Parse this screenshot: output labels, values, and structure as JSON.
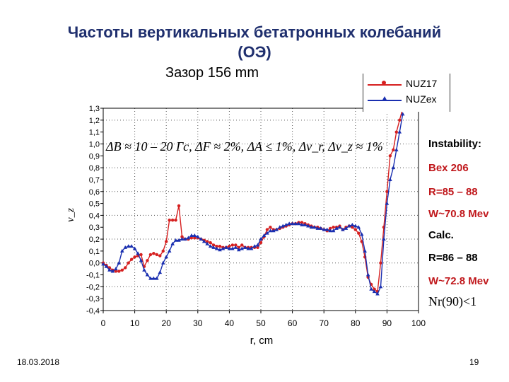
{
  "slide": {
    "title_line1": "Частоты вертикальных бетатронных колебаний",
    "title_line2": "(ОЭ)",
    "subtitle": "Зазор 156 mm",
    "formula": "ΔB ≈ 10 – 20 Гс, ΔF ≈ 2%, ΔA ≤ 1%, Δν_r, Δν_z ≈ 1%",
    "date": "18.03.2018",
    "page_number": "19",
    "side_notes": [
      {
        "text": "Instability:",
        "color": "#000000"
      },
      {
        "text": "Bex 206",
        "color": "#c0181c"
      },
      {
        "text": "R=85 – 88",
        "color": "#c0181c"
      },
      {
        "text": "W~70.8 Mev",
        "color": "#c0181c"
      },
      {
        "text": "Calc.",
        "color": "#000000"
      },
      {
        "text": "R=86 – 88",
        "color": "#000000"
      },
      {
        "text": "W~72.8 Mev",
        "color": "#c0181c"
      },
      {
        "text": "Nr(90)<1",
        "color": "#000000"
      }
    ]
  },
  "chart_data": {
    "type": "line",
    "xlabel": "r, cm",
    "ylabel": "ν_z",
    "xlim": [
      0,
      100
    ],
    "ylim": [
      -0.4,
      1.3
    ],
    "xticks": [
      0,
      10,
      20,
      30,
      40,
      50,
      60,
      70,
      80,
      90,
      100
    ],
    "yticks": [
      "-0,4",
      "-0,3",
      "-0,2",
      "-0,1",
      "0,0",
      "0,1",
      "0,2",
      "0,3",
      "0,4",
      "0,5",
      "0,6",
      "0,7",
      "0,8",
      "0,9",
      "1,0",
      "1,1",
      "1,2",
      "1,3"
    ],
    "grid": "dotted",
    "legend_position": "top-right",
    "series": [
      {
        "name": "NUZ17",
        "color": "#d62020",
        "marker": "circle",
        "x": [
          0,
          1,
          2,
          3,
          4,
          5,
          6,
          7,
          8,
          9,
          10,
          11,
          12,
          13,
          14,
          15,
          16,
          17,
          18,
          19,
          20,
          21,
          22,
          23,
          24,
          25,
          26,
          27,
          28,
          29,
          30,
          31,
          32,
          33,
          34,
          35,
          36,
          37,
          38,
          39,
          40,
          41,
          42,
          43,
          44,
          45,
          46,
          47,
          48,
          49,
          50,
          51,
          52,
          53,
          54,
          55,
          56,
          57,
          58,
          59,
          60,
          61,
          62,
          63,
          64,
          65,
          66,
          67,
          68,
          69,
          70,
          71,
          72,
          73,
          74,
          75,
          76,
          77,
          78,
          79,
          80,
          81,
          82,
          83,
          84,
          85,
          86,
          87,
          88,
          89,
          90,
          91,
          92,
          93,
          94,
          95
        ],
        "y": [
          0,
          -0.02,
          -0.04,
          -0.06,
          -0.07,
          -0.07,
          -0.06,
          -0.04,
          0,
          0.03,
          0.05,
          0.06,
          0.07,
          -0.03,
          0.02,
          0.07,
          0.08,
          0.07,
          0.06,
          0.1,
          0.18,
          0.36,
          0.36,
          0.36,
          0.48,
          0.22,
          0.2,
          0.2,
          0.21,
          0.21,
          0.21,
          0.2,
          0.19,
          0.18,
          0.17,
          0.15,
          0.14,
          0.14,
          0.13,
          0.13,
          0.14,
          0.15,
          0.15,
          0.13,
          0.15,
          0.13,
          0.13,
          0.13,
          0.13,
          0.13,
          0.17,
          0.22,
          0.28,
          0.3,
          0.28,
          0.28,
          0.29,
          0.3,
          0.31,
          0.32,
          0.33,
          0.33,
          0.34,
          0.34,
          0.33,
          0.32,
          0.31,
          0.3,
          0.3,
          0.29,
          0.28,
          0.27,
          0.29,
          0.3,
          0.3,
          0.31,
          0.28,
          0.3,
          0.31,
          0.3,
          0.28,
          0.25,
          0.18,
          0.05,
          -0.12,
          -0.18,
          -0.22,
          -0.24,
          0.0,
          0.3,
          0.6,
          0.9,
          0.95,
          1.1,
          1.2,
          1.3
        ]
      },
      {
        "name": "NUZex",
        "color": "#1a2fb0",
        "marker": "triangle",
        "x": [
          0,
          1,
          2,
          3,
          4,
          5,
          6,
          7,
          8,
          9,
          10,
          11,
          12,
          13,
          14,
          15,
          16,
          17,
          18,
          19,
          20,
          21,
          22,
          23,
          24,
          25,
          26,
          27,
          28,
          29,
          30,
          31,
          32,
          33,
          34,
          35,
          36,
          37,
          38,
          39,
          40,
          41,
          42,
          43,
          44,
          45,
          46,
          47,
          48,
          49,
          50,
          51,
          52,
          53,
          54,
          55,
          56,
          57,
          58,
          59,
          60,
          61,
          62,
          63,
          64,
          65,
          66,
          67,
          68,
          69,
          70,
          71,
          72,
          73,
          74,
          75,
          76,
          77,
          78,
          79,
          80,
          81,
          82,
          83,
          84,
          85,
          86,
          87,
          88,
          89,
          90,
          91,
          92,
          93,
          94,
          95
        ],
        "y": [
          -0.01,
          -0.03,
          -0.06,
          -0.07,
          -0.05,
          0,
          0.1,
          0.13,
          0.14,
          0.14,
          0.12,
          0.08,
          0.02,
          -0.06,
          -0.1,
          -0.13,
          -0.13,
          -0.13,
          -0.08,
          0,
          0.05,
          0.1,
          0.16,
          0.19,
          0.19,
          0.2,
          0.2,
          0.21,
          0.23,
          0.23,
          0.22,
          0.2,
          0.18,
          0.16,
          0.14,
          0.13,
          0.12,
          0.11,
          0.12,
          0.13,
          0.12,
          0.12,
          0.13,
          0.11,
          0.12,
          0.13,
          0.12,
          0.12,
          0.14,
          0.15,
          0.2,
          0.23,
          0.25,
          0.27,
          0.27,
          0.28,
          0.3,
          0.31,
          0.32,
          0.33,
          0.33,
          0.33,
          0.33,
          0.32,
          0.32,
          0.31,
          0.3,
          0.3,
          0.29,
          0.29,
          0.28,
          0.28,
          0.27,
          0.27,
          0.29,
          0.3,
          0.28,
          0.29,
          0.31,
          0.32,
          0.31,
          0.3,
          0.24,
          0.1,
          -0.1,
          -0.22,
          -0.24,
          -0.26,
          -0.2,
          0.2,
          0.5,
          0.7,
          0.8,
          0.95,
          1.1,
          1.25
        ]
      }
    ]
  }
}
